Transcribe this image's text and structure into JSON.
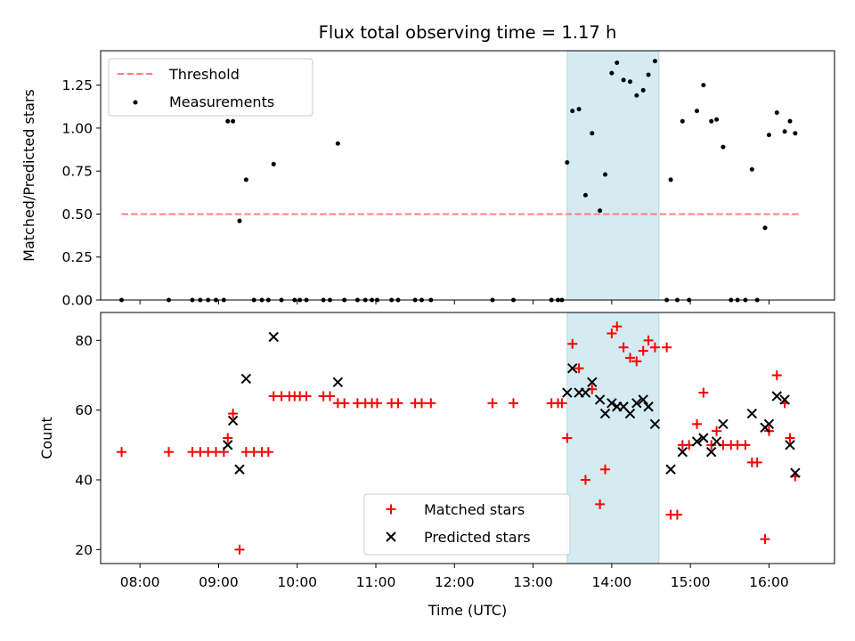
{
  "title": "Flux total observing time = 1.17 h",
  "chart_data": [
    {
      "type": "scatter",
      "ylabel": "Matched/Predicted stars",
      "xlim": [
        "07:30",
        "16:50"
      ],
      "ylim": [
        0,
        1.45
      ],
      "yticks": [
        "0.00",
        "0.25",
        "0.50",
        "0.75",
        "1.00",
        "1.25"
      ],
      "grid": false,
      "legend": "top-left",
      "shaded_interval": {
        "start": "13:26",
        "end": "14:36",
        "color": "#add8e6"
      },
      "threshold": {
        "name": "Threshold",
        "value": 0.5,
        "x_start": "07:46",
        "x_end": "16:23",
        "color": "#ff7f7f"
      },
      "series": [
        {
          "name": "Measurements",
          "color": "#000000",
          "points": [
            [
              "07:46",
              0
            ],
            [
              "08:22",
              0
            ],
            [
              "08:40",
              0
            ],
            [
              "08:46",
              0
            ],
            [
              "08:52",
              0
            ],
            [
              "08:58",
              0
            ],
            [
              "09:04",
              0
            ],
            [
              "09:07",
              1.04
            ],
            [
              "09:11",
              1.04
            ],
            [
              "09:16",
              0.46
            ],
            [
              "09:21",
              0.7
            ],
            [
              "09:27",
              0
            ],
            [
              "09:33",
              0
            ],
            [
              "09:38",
              0
            ],
            [
              "09:42",
              0.79
            ],
            [
              "09:48",
              0
            ],
            [
              "09:58",
              0
            ],
            [
              "10:02",
              0
            ],
            [
              "10:07",
              0
            ],
            [
              "10:20",
              0
            ],
            [
              "10:25",
              0
            ],
            [
              "10:31",
              0.91
            ],
            [
              "10:36",
              0
            ],
            [
              "10:46",
              0
            ],
            [
              "10:52",
              0
            ],
            [
              "10:57",
              0
            ],
            [
              "11:01",
              0
            ],
            [
              "11:12",
              0
            ],
            [
              "11:17",
              0
            ],
            [
              "11:30",
              0
            ],
            [
              "11:35",
              0
            ],
            [
              "11:42",
              0
            ],
            [
              "12:29",
              0
            ],
            [
              "12:45",
              0
            ],
            [
              "13:14",
              0
            ],
            [
              "13:19",
              0
            ],
            [
              "13:22",
              0
            ],
            [
              "13:26",
              0.8
            ],
            [
              "13:30",
              1.1
            ],
            [
              "13:35",
              1.11
            ],
            [
              "13:40",
              0.61
            ],
            [
              "13:45",
              0.97
            ],
            [
              "13:51",
              0.52
            ],
            [
              "13:55",
              0.73
            ],
            [
              "14:00",
              1.32
            ],
            [
              "14:04",
              1.38
            ],
            [
              "14:09",
              1.28
            ],
            [
              "14:14",
              1.27
            ],
            [
              "14:19",
              1.19
            ],
            [
              "14:24",
              1.22
            ],
            [
              "14:28",
              1.31
            ],
            [
              "14:33",
              1.39
            ],
            [
              "14:42",
              0
            ],
            [
              "14:45",
              0.7
            ],
            [
              "14:50",
              0
            ],
            [
              "14:54",
              1.04
            ],
            [
              "14:59",
              0
            ],
            [
              "15:05",
              1.1
            ],
            [
              "15:10",
              1.25
            ],
            [
              "15:16",
              1.04
            ],
            [
              "15:20",
              1.05
            ],
            [
              "15:25",
              0.89
            ],
            [
              "15:31",
              0
            ],
            [
              "15:36",
              0
            ],
            [
              "15:42",
              0
            ],
            [
              "15:47",
              0.76
            ],
            [
              "15:51",
              0
            ],
            [
              "15:57",
              0.42
            ],
            [
              "16:00",
              0.96
            ],
            [
              "16:06",
              1.09
            ],
            [
              "16:12",
              0.98
            ],
            [
              "16:16",
              1.04
            ],
            [
              "16:20",
              0.97
            ]
          ]
        }
      ]
    },
    {
      "type": "scatter",
      "xlabel": "Time (UTC)",
      "ylabel": "Count",
      "xlim": [
        "07:30",
        "16:50"
      ],
      "ylim": [
        16,
        88
      ],
      "xticks": [
        "08:00",
        "09:00",
        "10:00",
        "11:00",
        "12:00",
        "13:00",
        "14:00",
        "15:00",
        "16:00"
      ],
      "yticks": [
        "20",
        "40",
        "60",
        "80"
      ],
      "grid": false,
      "legend": "bottom-center",
      "shaded_interval": {
        "start": "13:26",
        "end": "14:36",
        "color": "#add8e6"
      },
      "series": [
        {
          "name": "Matched stars",
          "marker": "+",
          "color": "#ff0000",
          "points": [
            [
              "07:46",
              48
            ],
            [
              "08:22",
              48
            ],
            [
              "08:40",
              48
            ],
            [
              "08:46",
              48
            ],
            [
              "08:52",
              48
            ],
            [
              "08:58",
              48
            ],
            [
              "09:04",
              48
            ],
            [
              "09:07",
              52
            ],
            [
              "09:11",
              59
            ],
            [
              "09:16",
              20
            ],
            [
              "09:21",
              48
            ],
            [
              "09:27",
              48
            ],
            [
              "09:33",
              48
            ],
            [
              "09:38",
              48
            ],
            [
              "09:42",
              64
            ],
            [
              "09:48",
              64
            ],
            [
              "09:54",
              64
            ],
            [
              "09:58",
              64
            ],
            [
              "10:02",
              64
            ],
            [
              "10:07",
              64
            ],
            [
              "10:20",
              64
            ],
            [
              "10:25",
              64
            ],
            [
              "10:31",
              62
            ],
            [
              "10:36",
              62
            ],
            [
              "10:46",
              62
            ],
            [
              "10:52",
              62
            ],
            [
              "10:57",
              62
            ],
            [
              "11:01",
              62
            ],
            [
              "11:12",
              62
            ],
            [
              "11:17",
              62
            ],
            [
              "11:30",
              62
            ],
            [
              "11:35",
              62
            ],
            [
              "11:42",
              62
            ],
            [
              "12:29",
              62
            ],
            [
              "12:45",
              62
            ],
            [
              "13:14",
              62
            ],
            [
              "13:19",
              62
            ],
            [
              "13:22",
              62
            ],
            [
              "13:26",
              52
            ],
            [
              "13:30",
              79
            ],
            [
              "13:35",
              72
            ],
            [
              "13:40",
              40
            ],
            [
              "13:45",
              66
            ],
            [
              "13:51",
              33
            ],
            [
              "13:55",
              43
            ],
            [
              "14:00",
              82
            ],
            [
              "14:04",
              84
            ],
            [
              "14:09",
              78
            ],
            [
              "14:14",
              75
            ],
            [
              "14:19",
              74
            ],
            [
              "14:24",
              77
            ],
            [
              "14:28",
              80
            ],
            [
              "14:33",
              78
            ],
            [
              "14:42",
              78
            ],
            [
              "14:45",
              30
            ],
            [
              "14:50",
              30
            ],
            [
              "14:54",
              50
            ],
            [
              "14:59",
              50
            ],
            [
              "15:05",
              56
            ],
            [
              "15:10",
              65
            ],
            [
              "15:16",
              50
            ],
            [
              "15:20",
              54
            ],
            [
              "15:25",
              50
            ],
            [
              "15:31",
              50
            ],
            [
              "15:36",
              50
            ],
            [
              "15:42",
              50
            ],
            [
              "15:47",
              45
            ],
            [
              "15:51",
              45
            ],
            [
              "15:57",
              23
            ],
            [
              "16:00",
              54
            ],
            [
              "16:06",
              70
            ],
            [
              "16:12",
              62
            ],
            [
              "16:16",
              52
            ],
            [
              "16:20",
              41
            ]
          ]
        },
        {
          "name": "Predicted stars",
          "marker": "x",
          "color": "#000000",
          "points": [
            [
              "09:07",
              50
            ],
            [
              "09:11",
              57
            ],
            [
              "09:16",
              43
            ],
            [
              "09:21",
              69
            ],
            [
              "09:42",
              81
            ],
            [
              "10:31",
              68
            ],
            [
              "13:26",
              65
            ],
            [
              "13:30",
              72
            ],
            [
              "13:35",
              65
            ],
            [
              "13:40",
              65
            ],
            [
              "13:45",
              68
            ],
            [
              "13:51",
              63
            ],
            [
              "13:55",
              59
            ],
            [
              "14:00",
              62
            ],
            [
              "14:04",
              61
            ],
            [
              "14:09",
              61
            ],
            [
              "14:14",
              59
            ],
            [
              "14:19",
              62
            ],
            [
              "14:24",
              63
            ],
            [
              "14:28",
              61
            ],
            [
              "14:33",
              56
            ],
            [
              "14:45",
              43
            ],
            [
              "14:54",
              48
            ],
            [
              "15:05",
              51
            ],
            [
              "15:10",
              52
            ],
            [
              "15:16",
              48
            ],
            [
              "15:20",
              51
            ],
            [
              "15:25",
              56
            ],
            [
              "15:47",
              59
            ],
            [
              "15:57",
              55
            ],
            [
              "16:00",
              56
            ],
            [
              "16:06",
              64
            ],
            [
              "16:12",
              63
            ],
            [
              "16:16",
              50
            ],
            [
              "16:20",
              42
            ]
          ]
        }
      ]
    }
  ]
}
